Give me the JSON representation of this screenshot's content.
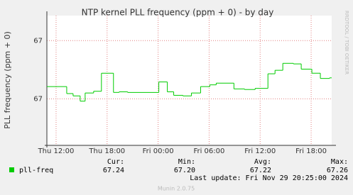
{
  "chart_data": {
    "type": "line",
    "step": true,
    "title": "NTP kernel PLL frequency (ppm + 0) - by day",
    "y_label": "PLL frequency (ppm + 0)",
    "x": [
      "Thu 10:55",
      "Thu 13:15",
      "Thu 14:00",
      "Thu 14:50",
      "Thu 15:25",
      "Thu 16:25",
      "Thu 17:20",
      "Thu 18:45",
      "Thu 19:25",
      "Thu 20:25",
      "Fri 00:05",
      "Fri 01:05",
      "Fri 01:50",
      "Fri 02:55",
      "Fri 03:55",
      "Fri 05:00",
      "Fri 06:05",
      "Fri 06:50",
      "Fri 08:55",
      "Fri 10:10",
      "Fri 11:25",
      "Fri 12:55",
      "Fri 13:45",
      "Fri 14:40",
      "Fri 15:55",
      "Fri 16:50",
      "Fri 18:05",
      "Fri 19:05",
      "Fri 20:10"
    ],
    "series": [
      {
        "name": "pll-freq",
        "color": "#00cc00",
        "values": [
          67.221,
          67.209,
          67.205,
          67.196,
          67.21,
          67.213,
          67.244,
          67.211,
          67.212,
          67.211,
          67.229,
          67.212,
          67.206,
          67.205,
          67.21,
          67.221,
          67.224,
          67.227,
          67.217,
          67.216,
          67.218,
          67.243,
          67.249,
          67.261,
          67.26,
          67.251,
          67.244,
          67.235,
          67.236
        ]
      }
    ],
    "xlim": [
      "Thu 10:55",
      "Fri 20:25"
    ],
    "xticks": [
      "Thu 12:00",
      "Thu 18:00",
      "Fri 00:00",
      "Fri 06:00",
      "Fri 12:00",
      "Fri 18:00"
    ],
    "ylim": [
      67.12,
      67.343
    ],
    "yticks": [
      {
        "value": 67.2,
        "label": "67"
      },
      {
        "value": 67.3,
        "label": "67"
      }
    ],
    "grid": true,
    "stats_labels": [
      "Cur:",
      "Min:",
      "Avg:",
      "Max:"
    ],
    "stats_values": [
      "67.24",
      "67.20",
      "67.22",
      "67.26"
    ],
    "last_update": "Last update: Fri Nov 29 20:25:00 2024",
    "watermark": "RRDTOOL / TOBI OETIKER",
    "footer": "Munin 2.0.75"
  }
}
